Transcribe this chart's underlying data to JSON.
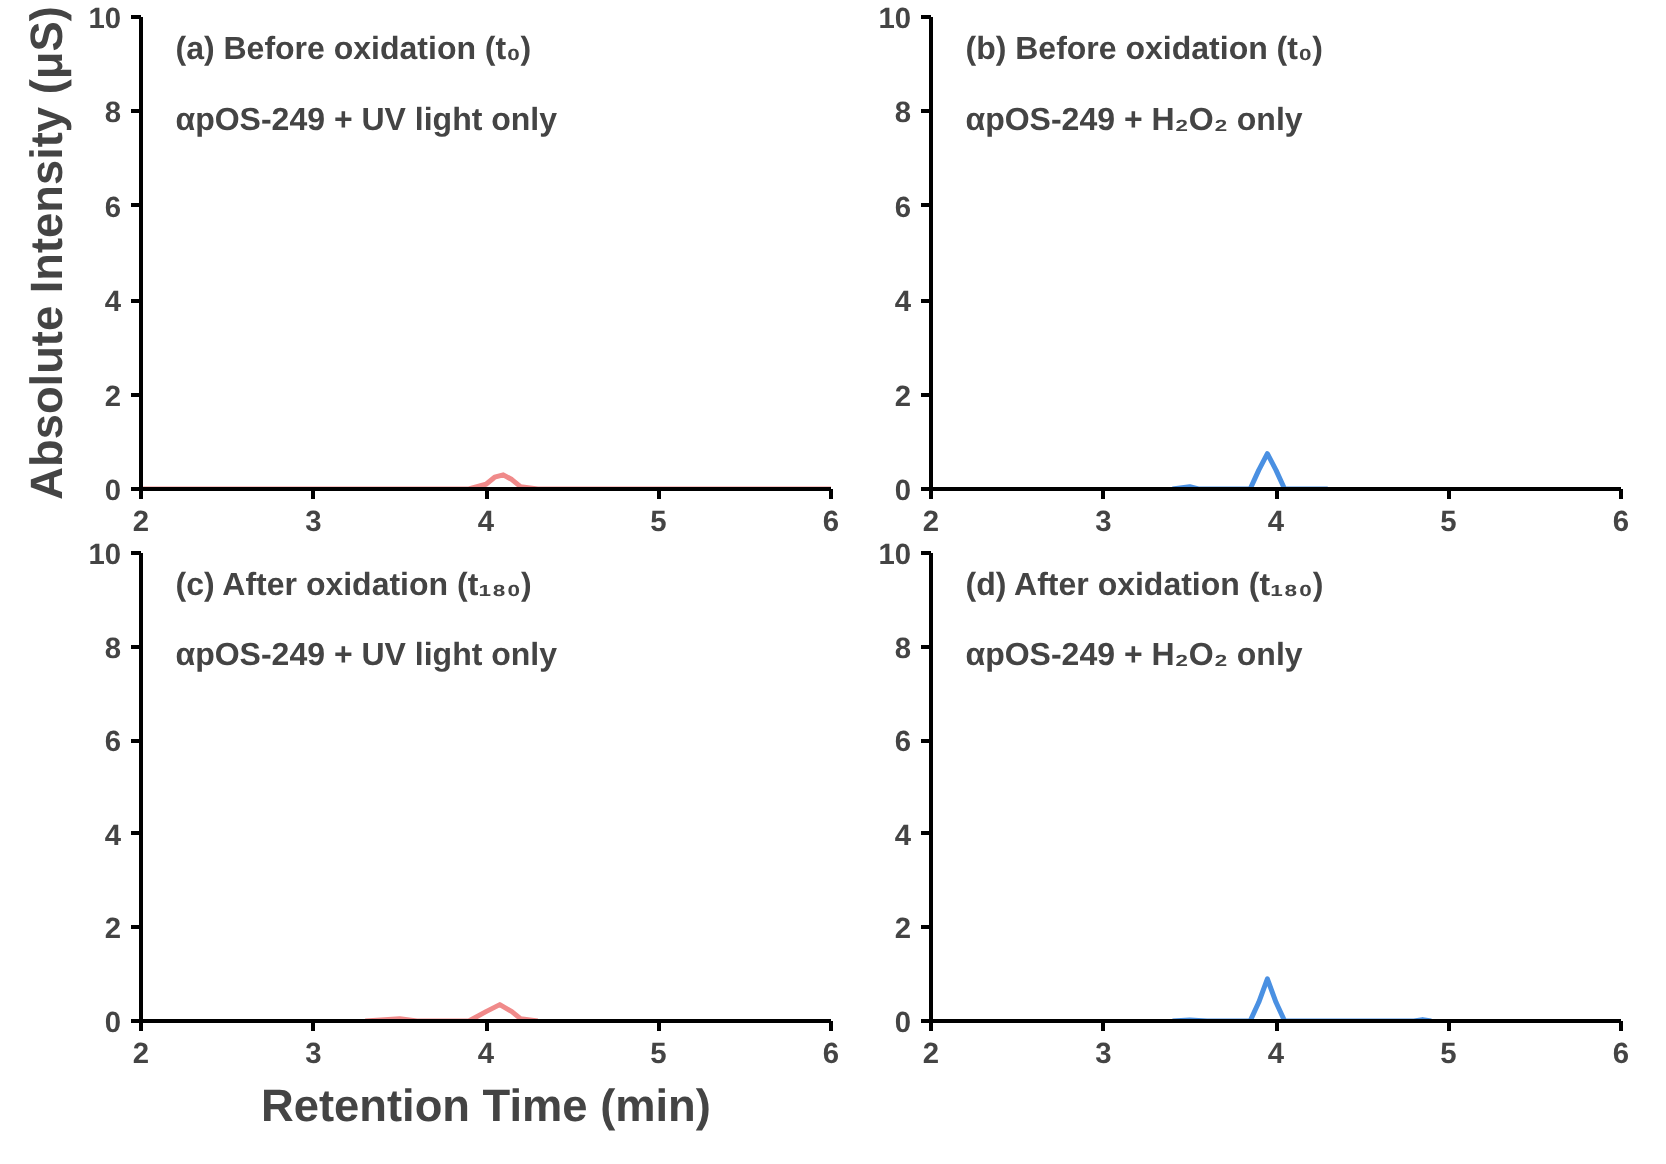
{
  "chart_data": [
    {
      "type": "line",
      "title": "(a) Before oxidation (t₀)",
      "subtitle": "αpOS-249 + UV light only",
      "ylabel": "Absolute Intensity (μS)",
      "xlim": [
        2,
        6
      ],
      "ylim": [
        0,
        10
      ],
      "xticks": [
        2,
        3,
        4,
        5,
        6
      ],
      "yticks": [
        0,
        2,
        4,
        6,
        8,
        10
      ],
      "grid": false,
      "series": [
        {
          "color": "#f08a8a",
          "x": [
            2,
            3,
            3.9,
            4.0,
            4.05,
            4.1,
            4.15,
            4.2,
            4.3,
            5,
            6
          ],
          "values": [
            0,
            0,
            0,
            0.1,
            0.25,
            0.3,
            0.2,
            0.05,
            0,
            0,
            0
          ]
        }
      ]
    },
    {
      "type": "line",
      "title": "(b) Before oxidation (t₀)",
      "subtitle": "αpOS-249 + H₂O₂ only",
      "xlim": [
        2,
        6
      ],
      "ylim": [
        0,
        10
      ],
      "xticks": [
        2,
        3,
        4,
        5,
        6
      ],
      "yticks": [
        0,
        2,
        4,
        6,
        8,
        10
      ],
      "grid": false,
      "series": [
        {
          "color": "#4a90e2",
          "x": [
            3.4,
            3.5,
            3.55,
            3.6,
            3.7,
            3.85,
            3.9,
            3.95,
            4.0,
            4.05,
            4.1,
            4.3
          ],
          "values": [
            0,
            0.05,
            0,
            0,
            0,
            0,
            0.4,
            0.75,
            0.4,
            0,
            0,
            0
          ]
        }
      ]
    },
    {
      "type": "line",
      "title": "(c) After oxidation (t₁₈₀)",
      "subtitle": "αpOS-249 + UV light only",
      "xlabel": "Retention Time (min)",
      "xlim": [
        2,
        6
      ],
      "ylim": [
        0,
        10
      ],
      "xticks": [
        2,
        3,
        4,
        5,
        6
      ],
      "yticks": [
        0,
        2,
        4,
        6,
        8,
        10
      ],
      "grid": false,
      "series": [
        {
          "color": "#f08a8a",
          "x": [
            3.3,
            3.5,
            3.6,
            3.9,
            4.0,
            4.08,
            4.15,
            4.2,
            4.3
          ],
          "values": [
            0,
            0.05,
            0,
            0,
            0.2,
            0.35,
            0.2,
            0.05,
            0
          ]
        }
      ]
    },
    {
      "type": "line",
      "title": "(d) After oxidation (t₁₈₀)",
      "subtitle": "αpOS-249 + H₂O₂ only",
      "xlim": [
        2,
        6
      ],
      "ylim": [
        0,
        10
      ],
      "xticks": [
        2,
        3,
        4,
        5,
        6
      ],
      "yticks": [
        0,
        2,
        4,
        6,
        8,
        10
      ],
      "grid": false,
      "series": [
        {
          "color": "#4a90e2",
          "x": [
            3.4,
            3.5,
            3.6,
            3.85,
            3.9,
            3.95,
            4.0,
            4.05,
            4.3,
            4.8,
            4.85,
            4.9
          ],
          "values": [
            0,
            0.02,
            0,
            0,
            0.4,
            0.9,
            0.4,
            0,
            0,
            0,
            0.03,
            0
          ]
        }
      ]
    }
  ]
}
